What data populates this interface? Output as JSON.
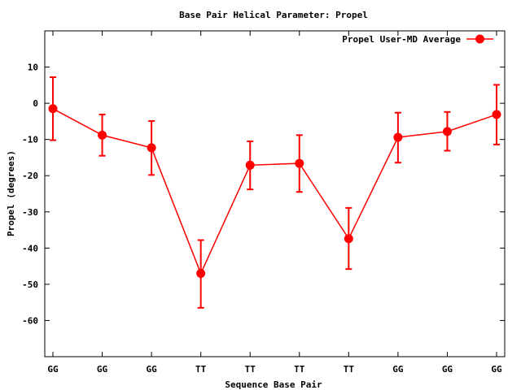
{
  "chart_data": {
    "type": "line",
    "title": "Base Pair Helical Parameter: Propel",
    "xlabel": "Sequence Base Pair",
    "ylabel": "Propel (degrees)",
    "categories": [
      "GG",
      "GG",
      "GG",
      "TT",
      "TT",
      "TT",
      "TT",
      "GG",
      "GG",
      "GG"
    ],
    "ylim": [
      -70,
      20
    ],
    "yticks": [
      10,
      0,
      -10,
      -20,
      -30,
      -40,
      -50,
      -60
    ],
    "grid": false,
    "legend_position": "top-right",
    "series": [
      {
        "name": "Propel User-MD Average",
        "color": "#ff0000",
        "values": [
          -1.5,
          -8.8,
          -12.3,
          -47.0,
          -17.1,
          -16.6,
          -37.4,
          -9.4,
          -7.8,
          -3.1
        ],
        "error_low": [
          -10.2,
          -14.5,
          -19.8,
          -56.5,
          -23.8,
          -24.5,
          -45.8,
          -16.4,
          -13.1,
          -11.4
        ],
        "error_high": [
          7.2,
          -3.1,
          -4.9,
          -37.8,
          -10.5,
          -8.8,
          -28.9,
          -2.6,
          -2.4,
          5.1
        ]
      }
    ]
  }
}
